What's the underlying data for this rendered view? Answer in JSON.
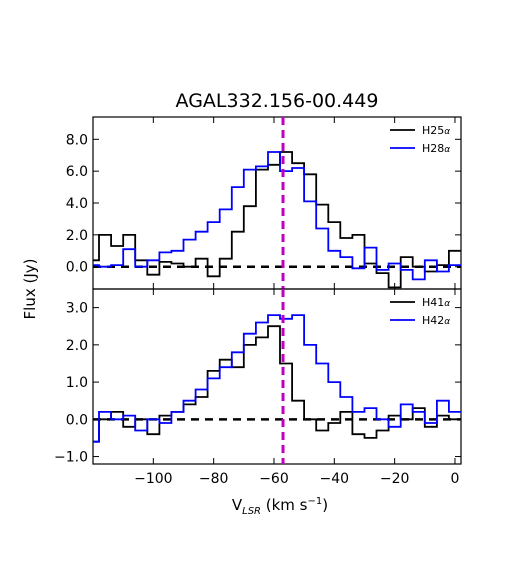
{
  "chart_data": [
    {
      "type": "line",
      "panel": "top",
      "title": "AGAL332.156-00.449",
      "ylabel": "Flux (Jy)",
      "xlim": [
        -120,
        2
      ],
      "ylim": [
        -1.4,
        9.4
      ],
      "yticks": [
        0.0,
        2.0,
        4.0,
        6.0,
        8.0
      ],
      "ytick_labels": [
        "0.0",
        "2.0",
        "4.0",
        "6.0",
        "8.0"
      ],
      "grid": false,
      "legend_position": "top-right",
      "reference_lines": {
        "vertical_x": -57,
        "horizontal_y": 0
      },
      "series": [
        {
          "name": "H25α",
          "label_base": "H25",
          "label_sub": "α",
          "color": "#000000",
          "x": [
            -120,
            -116,
            -112,
            -108,
            -104,
            -100,
            -96,
            -92,
            -88,
            -84,
            -80,
            -76,
            -72,
            -68,
            -64,
            -60,
            -56,
            -52,
            -48,
            -44,
            -40,
            -36,
            -32,
            -28,
            -24,
            -20,
            -16,
            -12,
            -8,
            -4,
            0
          ],
          "y": [
            0.4,
            2.0,
            1.3,
            2.0,
            0.4,
            -0.5,
            0.3,
            0.2,
            0.0,
            0.5,
            -0.6,
            0.5,
            2.2,
            3.8,
            6.1,
            6.4,
            7.2,
            6.5,
            5.8,
            3.9,
            2.8,
            1.8,
            2.0,
            0.2,
            -0.4,
            -1.3,
            0.6,
            0.0,
            -0.3,
            0.1,
            1.0
          ]
        },
        {
          "name": "H28α",
          "label_base": "H28",
          "label_sub": "α",
          "color": "#0000ff",
          "x": [
            -120,
            -116,
            -112,
            -108,
            -104,
            -100,
            -96,
            -92,
            -88,
            -84,
            -80,
            -76,
            -72,
            -68,
            -64,
            -60,
            -56,
            -52,
            -48,
            -44,
            -40,
            -36,
            -32,
            -28,
            -24,
            -20,
            -16,
            -12,
            -8,
            -4,
            0
          ],
          "y": [
            0.1,
            0.0,
            0.1,
            1.1,
            0.0,
            0.4,
            0.9,
            1.0,
            1.7,
            2.2,
            2.8,
            3.6,
            5.0,
            6.1,
            6.3,
            7.2,
            6.0,
            6.2,
            4.1,
            2.4,
            1.0,
            0.6,
            -0.1,
            1.2,
            -0.2,
            0.2,
            -0.2,
            -0.8,
            0.4,
            -0.3,
            0.1
          ]
        }
      ]
    },
    {
      "type": "line",
      "panel": "bottom",
      "xlabel_base": "V",
      "xlabel_sub": "LSR",
      "xlabel_unit": " (km s",
      "xlabel_exp": "−1",
      "xlabel_close": ")",
      "ylabel": "Flux (Jy)",
      "xlim": [
        -120,
        2
      ],
      "ylim": [
        -1.2,
        3.5
      ],
      "xticks": [
        -100,
        -80,
        -60,
        -40,
        -20,
        0
      ],
      "xtick_labels": [
        "−100",
        "−80",
        "−60",
        "−40",
        "−20",
        "0"
      ],
      "yticks": [
        -1.0,
        0.0,
        1.0,
        2.0,
        3.0
      ],
      "ytick_labels": [
        "−1.0",
        "0.0",
        "1.0",
        "2.0",
        "3.0"
      ],
      "grid": false,
      "legend_position": "top-right",
      "reference_lines": {
        "vertical_x": -57,
        "horizontal_y": 0
      },
      "series": [
        {
          "name": "H41α",
          "label_base": "H41",
          "label_sub": "α",
          "color": "#000000",
          "x": [
            -120,
            -116,
            -112,
            -108,
            -104,
            -100,
            -96,
            -92,
            -88,
            -84,
            -80,
            -76,
            -72,
            -68,
            -64,
            -60,
            -56,
            -52,
            -48,
            -44,
            -40,
            -36,
            -32,
            -28,
            -24,
            -20,
            -16,
            -12,
            -8,
            -4,
            0
          ],
          "y": [
            -0.6,
            0.0,
            0.2,
            -0.2,
            0.0,
            -0.4,
            0.1,
            0.2,
            0.4,
            0.6,
            1.3,
            1.6,
            1.4,
            2.0,
            2.2,
            2.5,
            1.5,
            0.5,
            0.0,
            -0.3,
            -0.1,
            0.2,
            -0.4,
            -0.5,
            -0.3,
            0.1,
            0.0,
            0.3,
            -0.2,
            0.1,
            0.0
          ]
        },
        {
          "name": "H42α",
          "label_base": "H42",
          "label_sub": "α",
          "color": "#0000ff",
          "x": [
            -120,
            -116,
            -112,
            -108,
            -104,
            -100,
            -96,
            -92,
            -88,
            -84,
            -80,
            -76,
            -72,
            -68,
            -64,
            -60,
            -56,
            -52,
            -48,
            -44,
            -40,
            -36,
            -32,
            -28,
            -24,
            -20,
            -16,
            -12,
            -8,
            -4,
            0
          ],
          "y": [
            -0.6,
            0.2,
            0.0,
            0.1,
            -0.3,
            0.0,
            -0.1,
            0.2,
            0.5,
            0.8,
            1.1,
            1.4,
            1.8,
            2.3,
            2.6,
            2.8,
            2.7,
            2.8,
            2.0,
            1.5,
            1.0,
            0.6,
            0.2,
            0.3,
            0.0,
            -0.2,
            0.4,
            0.2,
            -0.1,
            0.5,
            0.2
          ]
        }
      ]
    }
  ]
}
